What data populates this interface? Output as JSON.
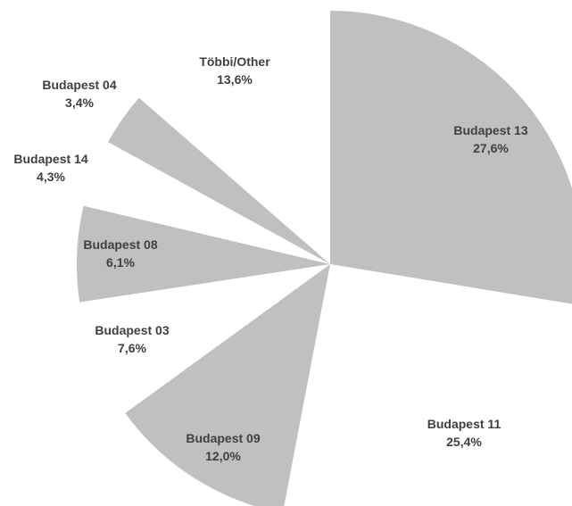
{
  "chart_data": {
    "type": "pie",
    "start_angle_deg": 90,
    "direction": "clockwise",
    "exploded_style": "alternating gray and white slices, gray slices offset outward",
    "slices": [
      {
        "name": "Budapest 13",
        "label": "27,6%",
        "value": 27.6,
        "color": "#c0c0c0"
      },
      {
        "name": "Budapest 11",
        "label": "25,4%",
        "value": 25.4,
        "color": "#ffffff"
      },
      {
        "name": "Budapest 09",
        "label": "12,0%",
        "value": 12.0,
        "color": "#c0c0c0"
      },
      {
        "name": "Budapest 03",
        "label": "7,6%",
        "value": 7.6,
        "color": "#ffffff"
      },
      {
        "name": "Budapest 08",
        "label": "6,1%",
        "value": 6.1,
        "color": "#c0c0c0"
      },
      {
        "name": "Budapest 14",
        "label": "4,3%",
        "value": 4.3,
        "color": "#ffffff"
      },
      {
        "name": "Budapest 04",
        "label": "3,4%",
        "value": 3.4,
        "color": "#c0c0c0"
      },
      {
        "name": "Többi/Other",
        "label": "13,6%",
        "value": 13.6,
        "color": "#ffffff"
      }
    ]
  }
}
